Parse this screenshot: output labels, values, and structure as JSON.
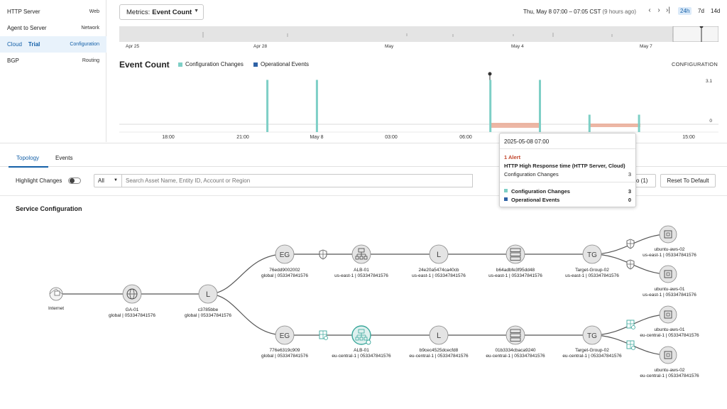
{
  "sidebar": {
    "items": [
      {
        "label": "HTTP Server",
        "right": "Web"
      },
      {
        "label": "Agent to Server",
        "right": "Network"
      },
      {
        "label": "Cloud",
        "badge": "Trial",
        "right": "Configuration"
      },
      {
        "label": "BGP",
        "right": "Routing"
      }
    ]
  },
  "header": {
    "metrics_prefix": "Metrics:",
    "metrics_value": "Event Count",
    "date_range": "Thu, May 8 07:00 – 07:05 CST",
    "date_range_note": "(9 hours ago)",
    "ranges": [
      "24h",
      "7d",
      "14d"
    ],
    "active_range": "24h"
  },
  "overview": {
    "labels": [
      "Apr 25",
      "Apr 28",
      "May",
      "May 4",
      "May 7"
    ]
  },
  "chart": {
    "title": "Event Count",
    "legend": [
      {
        "name": "Configuration Changes",
        "color": "#7ecfc6"
      },
      {
        "name": "Operational Events",
        "color": "#2f62a6"
      }
    ],
    "section_label": "CONFIGURATION",
    "ymax_label": "3.1",
    "ymin_label": "0",
    "x_ticks": [
      "18:00",
      "21:00",
      "May 8",
      "03:00",
      "06:00",
      "15:00"
    ]
  },
  "chart_data": {
    "type": "bar",
    "series": [
      {
        "name": "Configuration Changes",
        "values": [
          {
            "x": "2025-05-07 22:00",
            "y": 3
          },
          {
            "x": "2025-05-08 00:00",
            "y": 3
          },
          {
            "x": "2025-05-08 07:00",
            "y": 3
          },
          {
            "x": "2025-05-08 09:00",
            "y": 3
          },
          {
            "x": "2025-05-08 11:00",
            "y": 1
          },
          {
            "x": "2025-05-08 13:00",
            "y": 1
          }
        ]
      },
      {
        "name": "Operational Events",
        "values": []
      }
    ],
    "ylim": [
      0,
      3.1
    ]
  },
  "tabs": [
    "Topology",
    "Events"
  ],
  "toolbar": {
    "highlight_label": "Highlight Changes",
    "filter_value": "All",
    "search_placeholder": "Search Asset Name, Entity ID, Account or Region",
    "undo_label": "do (1)",
    "reset_label": "Reset To Default"
  },
  "service_config_title": "Service Configuration",
  "nodes": {
    "internet": {
      "name": "Internet"
    },
    "ga": {
      "name": "GA-01",
      "sub": "global | 053347841576"
    },
    "lmain": {
      "name": "c3785bbe",
      "sub": "global | 053347841576",
      "glyph": "L"
    },
    "eg1": {
      "name": "76edd9002002",
      "sub": "global | 053347841576",
      "glyph": "EG"
    },
    "alb1": {
      "name": "ALB-01",
      "sub": "us-east-1 | 053347841576"
    },
    "l1": {
      "name": "24e20a5474ca40cb",
      "sub": "us-east-1 | 053347841576",
      "glyph": "L"
    },
    "srv1": {
      "name": "b64adbfe3f95dd48",
      "sub": "us-east-1 | 053347841576"
    },
    "tg1": {
      "name": "Target-Group-02",
      "sub": "us-east-1 | 053347841576",
      "glyph": "TG"
    },
    "vm1a": {
      "name": "ubuntu-aws-02",
      "sub": "us-east-1 | 053347841576"
    },
    "vm1b": {
      "name": "ubuntu-aws-01",
      "sub": "us-east-1 | 053347841576"
    },
    "eg2": {
      "name": "776e6319c909",
      "sub": "global | 053347841576",
      "glyph": "EG"
    },
    "alb2": {
      "name": "ALB-01",
      "sub": "eu-central-1 | 053347841576"
    },
    "l2": {
      "name": "b9cec4525dcecfd8",
      "sub": "eu-central-1 | 053347841576",
      "glyph": "L"
    },
    "srv2": {
      "name": "01b3334cbaca9240",
      "sub": "eu-central-1 | 053347841576"
    },
    "tg2": {
      "name": "Target-Group-02",
      "sub": "eu-central-1 | 053347841576",
      "glyph": "TG"
    },
    "vm2a": {
      "name": "ubuntu-aws-01",
      "sub": "eu-central-1 | 053347841576"
    },
    "vm2b": {
      "name": "ubuntu-aws-02",
      "sub": "eu-central-1 | 053347841576"
    }
  },
  "tooltip": {
    "time": "2025-05-08 07:00",
    "alert_count": "1 Alert",
    "alert_name": "HTTP High Response time (HTTP Server, Cloud)",
    "alert_metric_label": "Configuration Changes",
    "alert_metric_value": "3",
    "rows": [
      {
        "label": "Configuration Changes",
        "value": "3",
        "color": "#7ecfc6"
      },
      {
        "label": "Operational Events",
        "value": "0",
        "color": "#2f62a6"
      }
    ]
  },
  "colors": {
    "accent": "#1460a8",
    "teal": "#7ecfc6",
    "navy": "#2f62a6",
    "hatch": "#e9a58f"
  }
}
